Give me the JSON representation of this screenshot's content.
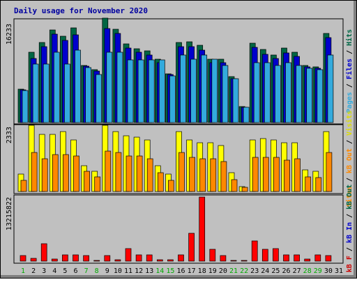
{
  "chart_data": {
    "type": "bar",
    "title": "Daily usage for November 2020",
    "days": [
      "1",
      "2",
      "3",
      "4",
      "5",
      "6",
      "7",
      "8",
      "9",
      "10",
      "11",
      "12",
      "13",
      "14",
      "15",
      "16",
      "17",
      "18",
      "19",
      "20",
      "21",
      "22",
      "23",
      "24",
      "25",
      "26",
      "27",
      "28",
      "29",
      "30",
      "31"
    ],
    "weekend_days": [
      1,
      7,
      8,
      14,
      15,
      21,
      22,
      28,
      29
    ],
    "panels": [
      {
        "id": "top",
        "ytick": "16233",
        "ymax": 16233,
        "labels": [
          {
            "text": "Pages",
            "color": "#33aadd"
          },
          {
            "text": " / ",
            "color": "#000000"
          },
          {
            "text": "Files",
            "color": "#0000cc"
          },
          {
            "text": " / ",
            "color": "#000000"
          },
          {
            "text": "Hits",
            "color": "#006644"
          }
        ],
        "series": [
          {
            "name": "Hits",
            "color": "#006644",
            "values": [
              5200,
              10900,
              12400,
              14400,
              13400,
              14700,
              8900,
              8200,
              16233,
              14500,
              12200,
              11500,
              11100,
              9800,
              7600,
              12400,
              12500,
              12000,
              9900,
              9800,
              7100,
              2500,
              12300,
              11400,
              10500,
              11600,
              10900,
              8900,
              8700,
              13900,
              null
            ]
          },
          {
            "name": "Files",
            "color": "#0000cc",
            "values": [
              5100,
              10000,
              11800,
              13700,
              12800,
              13600,
              8800,
              8000,
              14600,
              13800,
              11600,
              10900,
              10500,
              9300,
              7500,
              11800,
              11800,
              11300,
              9300,
              9300,
              6800,
              2400,
              11700,
              10600,
              10000,
              10800,
              10300,
              8700,
              8400,
              13200,
              null
            ]
          },
          {
            "name": "Pages",
            "color": "#33aadd",
            "values": [
              5000,
              9100,
              9100,
              10900,
              9100,
              11300,
              8600,
              7500,
              10900,
              10900,
              9700,
              9700,
              9700,
              9700,
              7300,
              10500,
              9800,
              10500,
              9800,
              8900,
              6800,
              2400,
              9300,
              9300,
              8900,
              9300,
              8900,
              8400,
              8200,
              10500,
              null
            ]
          }
        ]
      },
      {
        "id": "middle",
        "ytick": "2333",
        "ymax": 2333,
        "labels": [
          {
            "text": "Sites",
            "color": "#ff8800"
          },
          {
            "text": " / ",
            "color": "#000000"
          },
          {
            "text": "kB Out",
            "color": "#ff8800"
          },
          {
            "text": " / ",
            "color": "#000000"
          },
          {
            "text": "Visits",
            "color": "#dddd00"
          }
        ],
        "series": [
          {
            "name": "Visits",
            "color": "#ffff00",
            "values": [
              600,
              2300,
              2000,
              2000,
              2100,
              1800,
              900,
              700,
              2300,
              2100,
              1950,
              1900,
              1800,
              900,
              600,
              2100,
              1800,
              1700,
              1700,
              1600,
              650,
              180,
              1800,
              1850,
              1800,
              1700,
              1700,
              750,
              700,
              2100,
              null
            ]
          },
          {
            "name": "Sites",
            "color": "#ff8800",
            "values": [
              400,
              1350,
              1150,
              1300,
              1300,
              1250,
              700,
              500,
              1400,
              1350,
              1250,
              1250,
              1150,
              650,
              400,
              1350,
              1200,
              1150,
              1150,
              1050,
              420,
              150,
              1200,
              1200,
              1200,
              1100,
              1150,
              500,
              480,
              1350,
              null
            ]
          }
        ]
      },
      {
        "id": "bottom",
        "ytick": "13215822",
        "ymax": 13215822,
        "labels": [
          {
            "text": "kB F",
            "color": "#cc0000"
          },
          {
            "text": " / ",
            "color": "#000000"
          },
          {
            "text": "kB In",
            "color": "#0000cc"
          },
          {
            "text": " / ",
            "color": "#000000"
          },
          {
            "text": "kB Out",
            "color": "#006644"
          }
        ],
        "series": [
          {
            "name": "kB F",
            "color": "#ff0000",
            "values": [
              1200000,
              600000,
              3600000,
              500000,
              1350000,
              1350000,
              1200000,
              150000,
              1200000,
              300000,
              2600000,
              1250000,
              1250000,
              300000,
              300000,
              1250000,
              5700000,
              13215822,
              2500000,
              1200000,
              200000,
              150000,
              4200000,
              2400000,
              2600000,
              1250000,
              1250000,
              500000,
              1250000,
              1100000,
              null
            ]
          }
        ]
      }
    ]
  }
}
